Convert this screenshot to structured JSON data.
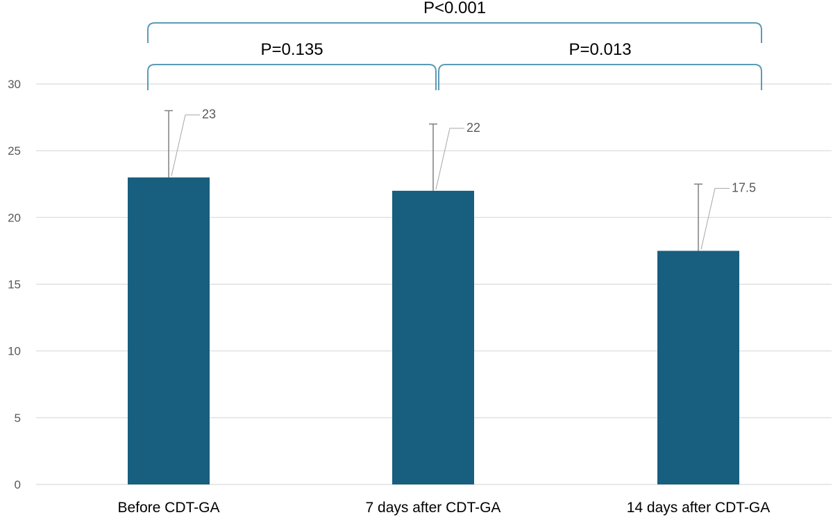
{
  "chart_data": {
    "type": "bar",
    "categories": [
      "Before CDT-GA",
      "7 days after CDT-GA",
      "14 days after CDT-GA"
    ],
    "values": [
      23,
      22,
      17.5
    ],
    "error_upper": [
      28,
      27,
      22.5
    ],
    "data_labels": [
      "23",
      "22",
      "17.5"
    ],
    "ylim": [
      0,
      30
    ],
    "yticks": [
      0,
      5,
      10,
      15,
      20,
      25,
      30
    ],
    "ytick_labels": [
      "0",
      "5",
      "10",
      "15",
      "20",
      "25",
      "30"
    ],
    "grid": true,
    "bar_color": "#175e7f",
    "bracket_color": "#5a9bb5",
    "comparisons": [
      {
        "from": 0,
        "to": 2,
        "label": "P<0.001",
        "level": 2
      },
      {
        "from": 0,
        "to": 1,
        "label": "P=0.135",
        "level": 1
      },
      {
        "from": 1,
        "to": 2,
        "label": "P=0.013",
        "level": 1
      }
    ]
  }
}
